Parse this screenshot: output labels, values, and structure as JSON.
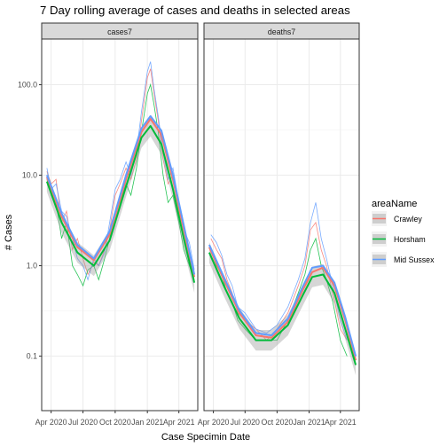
{
  "chart_data": {
    "type": "line",
    "title": "7 Day rolling average of cases and deaths in selected areas",
    "xlabel": "Case Specimin Date",
    "ylabel": "# Cases",
    "y_scale": "log10",
    "ylim": [
      0.025,
      320
    ],
    "yticks": [
      0.1,
      1,
      10,
      100
    ],
    "ytick_labels": [
      "0.1",
      "1.0",
      "10.0",
      "100.0"
    ],
    "xlim": [
      "2020-03-05",
      "2021-05-25"
    ],
    "xticks": [
      "2020-04-01",
      "2020-07-01",
      "2020-10-01",
      "2021-01-01",
      "2021-04-01"
    ],
    "xtick_labels": [
      "Apr 2020",
      "Jul 2020",
      "Oct 2020",
      "Jan 2021",
      "Apr 2021"
    ],
    "grid": true,
    "legend": {
      "title": "areaName",
      "position": "right",
      "entries": [
        "Crawley",
        "Horsham",
        "Mid Sussex"
      ]
    },
    "colors": {
      "Crawley": "#F8766D",
      "Horsham": "#00BA38",
      "Mid Sussex": "#619CFF",
      "strip_bg": "#D9D9D9",
      "ribbon": "#999999"
    },
    "facets": [
      {
        "label": "cases7",
        "smooth": [
          {
            "name": "Crawley",
            "x": [
              "2020-03-20",
              "2020-05-01",
              "2020-06-15",
              "2020-08-01",
              "2020-09-15",
              "2020-11-01",
              "2020-12-15",
              "2021-01-10",
              "2021-02-10",
              "2021-03-15",
              "2021-04-15",
              "2021-05-15"
            ],
            "y": [
              9.5,
              3.5,
              1.6,
              1.15,
              2.2,
              9,
              30,
              42,
              28,
              9,
              2.5,
              0.75
            ]
          },
          {
            "name": "Horsham",
            "x": [
              "2020-03-20",
              "2020-05-01",
              "2020-06-15",
              "2020-08-01",
              "2020-09-15",
              "2020-11-01",
              "2020-12-15",
              "2021-01-10",
              "2021-02-10",
              "2021-03-15",
              "2021-04-15",
              "2021-05-15"
            ],
            "y": [
              8.5,
              3,
              1.4,
              1,
              1.9,
              7.5,
              26,
              35,
              22,
              7,
              2,
              0.65
            ]
          },
          {
            "name": "Mid Sussex",
            "x": [
              "2020-03-20",
              "2020-05-01",
              "2020-06-15",
              "2020-08-01",
              "2020-09-15",
              "2020-11-01",
              "2020-12-15",
              "2021-01-10",
              "2021-02-10",
              "2021-03-15",
              "2021-04-15",
              "2021-05-15"
            ],
            "y": [
              10,
              3.8,
              1.7,
              1.2,
              2.4,
              10,
              33,
              45,
              31,
              10,
              2.8,
              0.8
            ]
          }
        ],
        "observed": [
          {
            "name": "Crawley",
            "x": [
              "2020-03-20",
              "2020-04-01",
              "2020-04-15",
              "2020-05-01",
              "2020-05-15",
              "2020-06-01",
              "2020-06-15",
              "2020-07-01",
              "2020-07-15",
              "2020-08-01",
              "2020-08-15",
              "2020-09-01",
              "2020-09-15",
              "2020-10-01",
              "2020-10-15",
              "2020-11-01",
              "2020-11-15",
              "2020-12-01",
              "2020-12-15",
              "2021-01-01",
              "2021-01-10",
              "2021-01-20",
              "2021-02-01",
              "2021-02-15",
              "2021-03-01",
              "2021-03-15",
              "2021-04-01",
              "2021-04-15",
              "2021-05-01",
              "2021-05-15"
            ],
            "y": [
              11,
              8,
              9,
              3,
              4,
              1.5,
              2,
              1.2,
              0.8,
              1.1,
              1,
              1.5,
              2.5,
              6,
              8,
              12,
              9,
              15,
              40,
              120,
              150,
              80,
              40,
              15,
              8,
              10,
              4,
              2,
              1.5,
              0.8
            ]
          },
          {
            "name": "Horsham",
            "x": [
              "2020-03-20",
              "2020-04-01",
              "2020-04-15",
              "2020-05-01",
              "2020-05-15",
              "2020-06-01",
              "2020-06-15",
              "2020-07-01",
              "2020-07-15",
              "2020-08-01",
              "2020-08-15",
              "2020-09-01",
              "2020-09-15",
              "2020-10-01",
              "2020-10-15",
              "2020-11-01",
              "2020-11-15",
              "2020-12-01",
              "2020-12-15",
              "2021-01-01",
              "2021-01-10",
              "2021-01-20",
              "2021-02-01",
              "2021-02-15",
              "2021-03-01",
              "2021-03-15",
              "2021-04-01",
              "2021-04-15",
              "2021-05-01",
              "2021-05-15"
            ],
            "y": [
              9,
              6,
              5,
              2,
              3,
              1,
              0.8,
              0.6,
              0.9,
              1,
              0.7,
              1.2,
              2,
              4,
              5,
              8,
              6,
              12,
              30,
              80,
              100,
              60,
              30,
              10,
              5,
              6,
              3,
              1.5,
              1,
              0.7
            ]
          },
          {
            "name": "Mid Sussex",
            "x": [
              "2020-03-20",
              "2020-04-01",
              "2020-04-15",
              "2020-05-01",
              "2020-05-15",
              "2020-06-01",
              "2020-06-15",
              "2020-07-01",
              "2020-07-15",
              "2020-08-01",
              "2020-08-15",
              "2020-09-01",
              "2020-09-15",
              "2020-10-01",
              "2020-10-15",
              "2020-11-01",
              "2020-11-15",
              "2020-12-01",
              "2020-12-15",
              "2021-01-01",
              "2021-01-10",
              "2021-01-20",
              "2021-02-01",
              "2021-02-15",
              "2021-03-01",
              "2021-03-15",
              "2021-04-01",
              "2021-04-15",
              "2021-05-01",
              "2021-05-15"
            ],
            "y": [
              12,
              7,
              8,
              4,
              3.5,
              2,
              1.2,
              1,
              0.7,
              1.2,
              1,
              1.4,
              3,
              7,
              9,
              14,
              10,
              18,
              50,
              140,
              180,
              90,
              45,
              18,
              9,
              12,
              5,
              2.5,
              1.8,
              0.9
            ]
          }
        ]
      },
      {
        "label": "deaths7",
        "smooth": [
          {
            "name": "Crawley",
            "x": [
              "2020-03-20",
              "2020-05-01",
              "2020-06-15",
              "2020-08-01",
              "2020-09-15",
              "2020-11-01",
              "2020-12-15",
              "2021-01-10",
              "2021-02-10",
              "2021-03-15",
              "2021-04-15",
              "2021-05-15"
            ],
            "y": [
              1.6,
              0.7,
              0.3,
              0.17,
              0.16,
              0.24,
              0.55,
              0.85,
              0.95,
              0.6,
              0.25,
              0.09
            ]
          },
          {
            "name": "Horsham",
            "x": [
              "2020-03-20",
              "2020-05-01",
              "2020-06-15",
              "2020-08-01",
              "2020-09-15",
              "2020-11-01",
              "2020-12-15",
              "2021-01-10",
              "2021-02-10",
              "2021-03-15",
              "2021-04-15",
              "2021-05-15"
            ],
            "y": [
              1.4,
              0.6,
              0.26,
              0.15,
              0.15,
              0.22,
              0.48,
              0.75,
              0.8,
              0.5,
              0.2,
              0.08
            ]
          },
          {
            "name": "Mid Sussex",
            "x": [
              "2020-03-20",
              "2020-05-01",
              "2020-06-15",
              "2020-08-01",
              "2020-09-15",
              "2020-11-01",
              "2020-12-15",
              "2021-01-10",
              "2021-02-10",
              "2021-03-15",
              "2021-04-15",
              "2021-05-15"
            ],
            "y": [
              1.7,
              0.75,
              0.32,
              0.18,
              0.17,
              0.26,
              0.6,
              0.95,
              1.0,
              0.65,
              0.27,
              0.1
            ]
          }
        ],
        "observed": [
          {
            "name": "Crawley",
            "x": [
              "2020-03-25",
              "2020-04-10",
              "2020-04-25",
              "2020-05-10",
              "2020-05-25",
              "2020-06-10",
              "2020-07-01",
              "2020-08-01",
              "2020-09-01",
              "2020-10-01",
              "2020-11-01",
              "2020-12-01",
              "2020-12-20",
              "2021-01-05",
              "2021-01-20",
              "2021-02-05",
              "2021-02-20",
              "2021-03-10",
              "2021-04-01",
              "2021-04-20"
            ],
            "y": [
              2,
              1.5,
              1.2,
              0.7,
              0.5,
              0.3,
              0.25,
              0.2,
              0.15,
              0.2,
              0.3,
              0.6,
              1,
              2.5,
              3,
              1.5,
              1,
              0.5,
              0.2,
              0.15
            ]
          },
          {
            "name": "Horsham",
            "x": [
              "2020-03-25",
              "2020-04-10",
              "2020-04-25",
              "2020-05-10",
              "2020-05-25",
              "2020-06-10",
              "2020-07-01",
              "2020-08-01",
              "2020-09-01",
              "2020-10-01",
              "2020-11-01",
              "2020-12-01",
              "2020-12-20",
              "2021-01-05",
              "2021-01-20",
              "2021-02-05",
              "2021-02-20",
              "2021-03-10",
              "2021-04-01",
              "2021-04-20"
            ],
            "y": [
              1.5,
              1,
              0.8,
              0.5,
              0.4,
              0.25,
              0.2,
              0.15,
              0.15,
              0.15,
              0.25,
              0.5,
              0.8,
              1.5,
              2,
              1,
              0.7,
              0.4,
              0.15,
              0.1
            ]
          },
          {
            "name": "Mid Sussex",
            "x": [
              "2020-03-25",
              "2020-04-10",
              "2020-04-25",
              "2020-05-10",
              "2020-05-25",
              "2020-06-10",
              "2020-07-01",
              "2020-08-01",
              "2020-09-01",
              "2020-10-01",
              "2020-11-01",
              "2020-12-01",
              "2020-12-20",
              "2021-01-05",
              "2021-01-20",
              "2021-02-05",
              "2021-02-20",
              "2021-03-10",
              "2021-04-01",
              "2021-04-20"
            ],
            "y": [
              2.2,
              1.8,
              1.3,
              0.8,
              0.6,
              0.35,
              0.3,
              0.2,
              0.18,
              0.22,
              0.35,
              0.7,
              1.2,
              3,
              5,
              2,
              1.2,
              0.6,
              0.25,
              0.15
            ]
          }
        ]
      }
    ]
  }
}
